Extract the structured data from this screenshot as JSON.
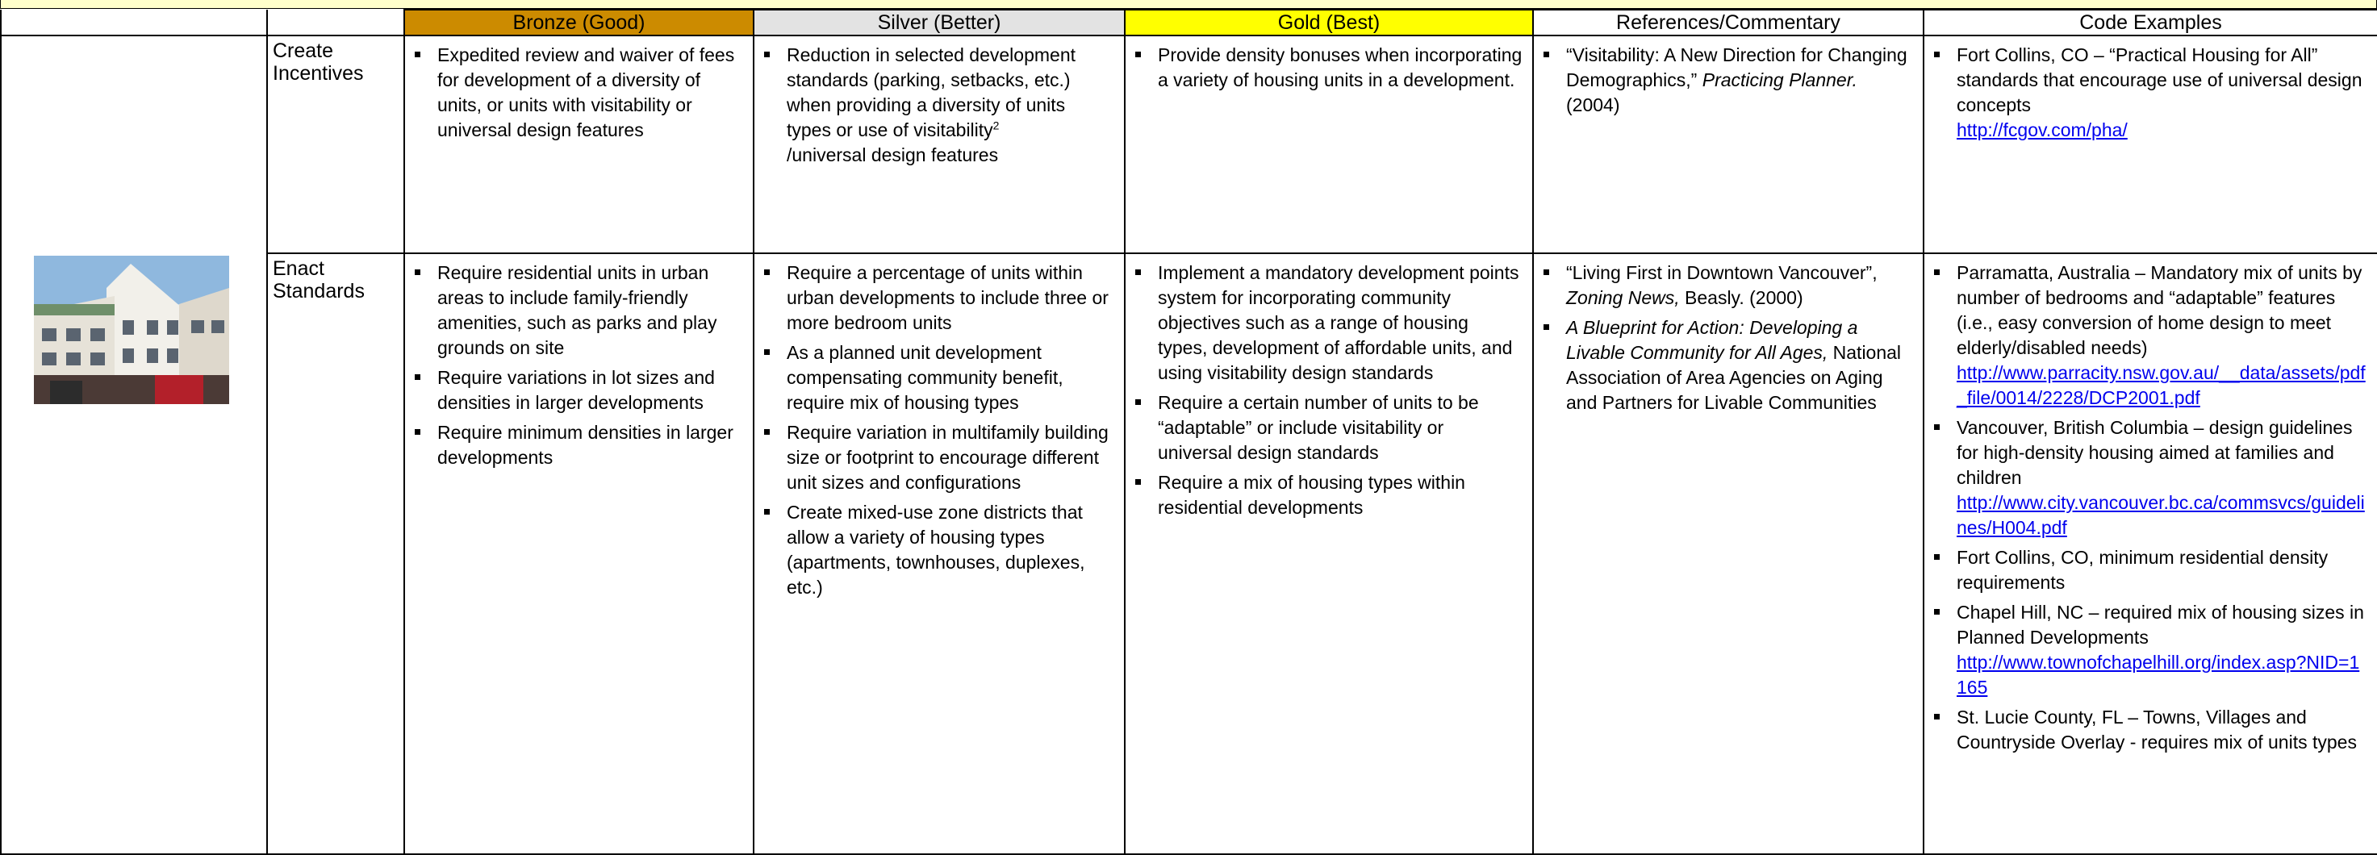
{
  "header": {
    "columns": [
      {
        "text": "Bronze (Good)",
        "color": "#cc8b00"
      },
      {
        "text": "Silver (Better)",
        "color": "#e3e3e3"
      },
      {
        "text": "Gold (Best)",
        "color": "#ffff00"
      },
      {
        "text": "References/Commentary",
        "color": "#ffffff"
      },
      {
        "text": "Code Examples",
        "color": "#ffffff"
      }
    ]
  },
  "rows": [
    {
      "category": "Create Incentives",
      "cells": [
        {
          "items": [
            {
              "parts": [
                {
                  "text": "Expedited review and waiver of fees for development of a diversity of units, or units with visitability or universal design features"
                }
              ]
            }
          ]
        },
        {
          "items": [
            {
              "parts": [
                {
                  "text": "Reduction in selected development standards (parking, setbacks, etc.) when providing a diversity of units types or use of visitability"
                },
                {
                  "text": "2",
                  "sup": true
                },
                {
                  "text": "/universal design features",
                  "block": true
                }
              ]
            }
          ]
        },
        {
          "items": [
            {
              "parts": [
                {
                  "text": "Provide density bonuses when incorporating a variety of housing units in a development."
                }
              ]
            }
          ]
        },
        {
          "items": [
            {
              "parts": [
                {
                  "text": "“Visitability: A New Direction for Changing Demographics,” "
                },
                {
                  "text": "Practicing Planner.",
                  "italic": true
                },
                {
                  "text": " (2004)"
                }
              ]
            }
          ]
        },
        {
          "items": [
            {
              "parts": [
                {
                  "text": "Fort Collins, CO –  “Practical Housing for All” standards that encourage use of universal design concepts"
                },
                {
                  "text": "http://fcgov.com/pha/",
                  "link": true
                }
              ]
            }
          ]
        }
      ]
    },
    {
      "category": "Enact Standards",
      "cells": [
        {
          "items": [
            {
              "parts": [
                {
                  "text": "Require residential units in urban areas to include family-friendly amenities, such as parks and play grounds on site"
                }
              ]
            },
            {
              "parts": [
                {
                  "text": "Require variations in lot sizes and densities in larger developments"
                }
              ]
            },
            {
              "parts": [
                {
                  "text": "Require minimum densities in larger developments"
                }
              ]
            }
          ]
        },
        {
          "items": [
            {
              "parts": [
                {
                  "text": "Require a percentage of units within urban developments to include three or more bedroom units"
                }
              ]
            },
            {
              "parts": [
                {
                  "text": "As a planned unit development compensating community benefit, require mix of housing types"
                }
              ]
            },
            {
              "parts": [
                {
                  "text": "Require variation in multifamily building size or footprint to encourage different unit sizes and configurations"
                }
              ]
            },
            {
              "parts": [
                {
                  "text": "Create mixed-use zone districts that allow a variety of housing types (apartments, townhouses, duplexes, etc.)"
                }
              ]
            }
          ]
        },
        {
          "items": [
            {
              "parts": [
                {
                  "text": "Implement a mandatory development points system for incorporating community objectives such as a range of housing types, development of affordable units, and using visitability design standards"
                }
              ]
            },
            {
              "parts": [
                {
                  "text": "Require a certain number of units to be “adaptable” or include visitability or universal design standards"
                }
              ]
            },
            {
              "parts": [
                {
                  "text": "Require a mix of housing types within residential developments"
                }
              ]
            }
          ]
        },
        {
          "items": [
            {
              "parts": [
                {
                  "text": "“Living First in Downtown Vancouver”, "
                },
                {
                  "text": "Zoning News,",
                  "italic": true
                },
                {
                  "text": " Beasly. (2000)"
                }
              ]
            },
            {
              "parts": [
                {
                  "text": "A Blueprint for Action:  Developing a Livable Community for All Ages,",
                  "italic": true
                },
                {
                  "text": " National Association of Area Agencies on Aging and Partners for Livable Communities"
                }
              ]
            }
          ]
        },
        {
          "items": [
            {
              "parts": [
                {
                  "text": "Parramatta, Australia – Mandatory mix of units by number of bedrooms and “adaptable” features (i.e., easy conversion of home design to meet elderly/disabled needs)"
                },
                {
                  "text": "http://www.parracity.nsw.gov.au/__data/assets/pdf_file/0014/2228/DCP2001.pdf",
                  "link": true
                }
              ]
            },
            {
              "parts": [
                {
                  "text": "Vancouver, British Columbia – design guidelines for high-density housing aimed at families and children"
                },
                {
                  "text": "http://www.city.vancouver.bc.ca/commsvcs/guidelines/H004.pdf",
                  "link": true
                }
              ]
            },
            {
              "parts": [
                {
                  "text": "Fort Collins, CO, minimum residential density requirements"
                }
              ]
            },
            {
              "parts": [
                {
                  "text": "Chapel Hill, NC – required mix of housing sizes in Planned Developments"
                },
                {
                  "text": "http://www.townofchapelhill.org/index.asp?NID=1165",
                  "link": true
                }
              ]
            },
            {
              "parts": [
                {
                  "text": "St. Lucie County, FL – Towns, Villages and Countryside Overlay - requires mix of units types"
                }
              ]
            }
          ]
        }
      ]
    }
  ]
}
